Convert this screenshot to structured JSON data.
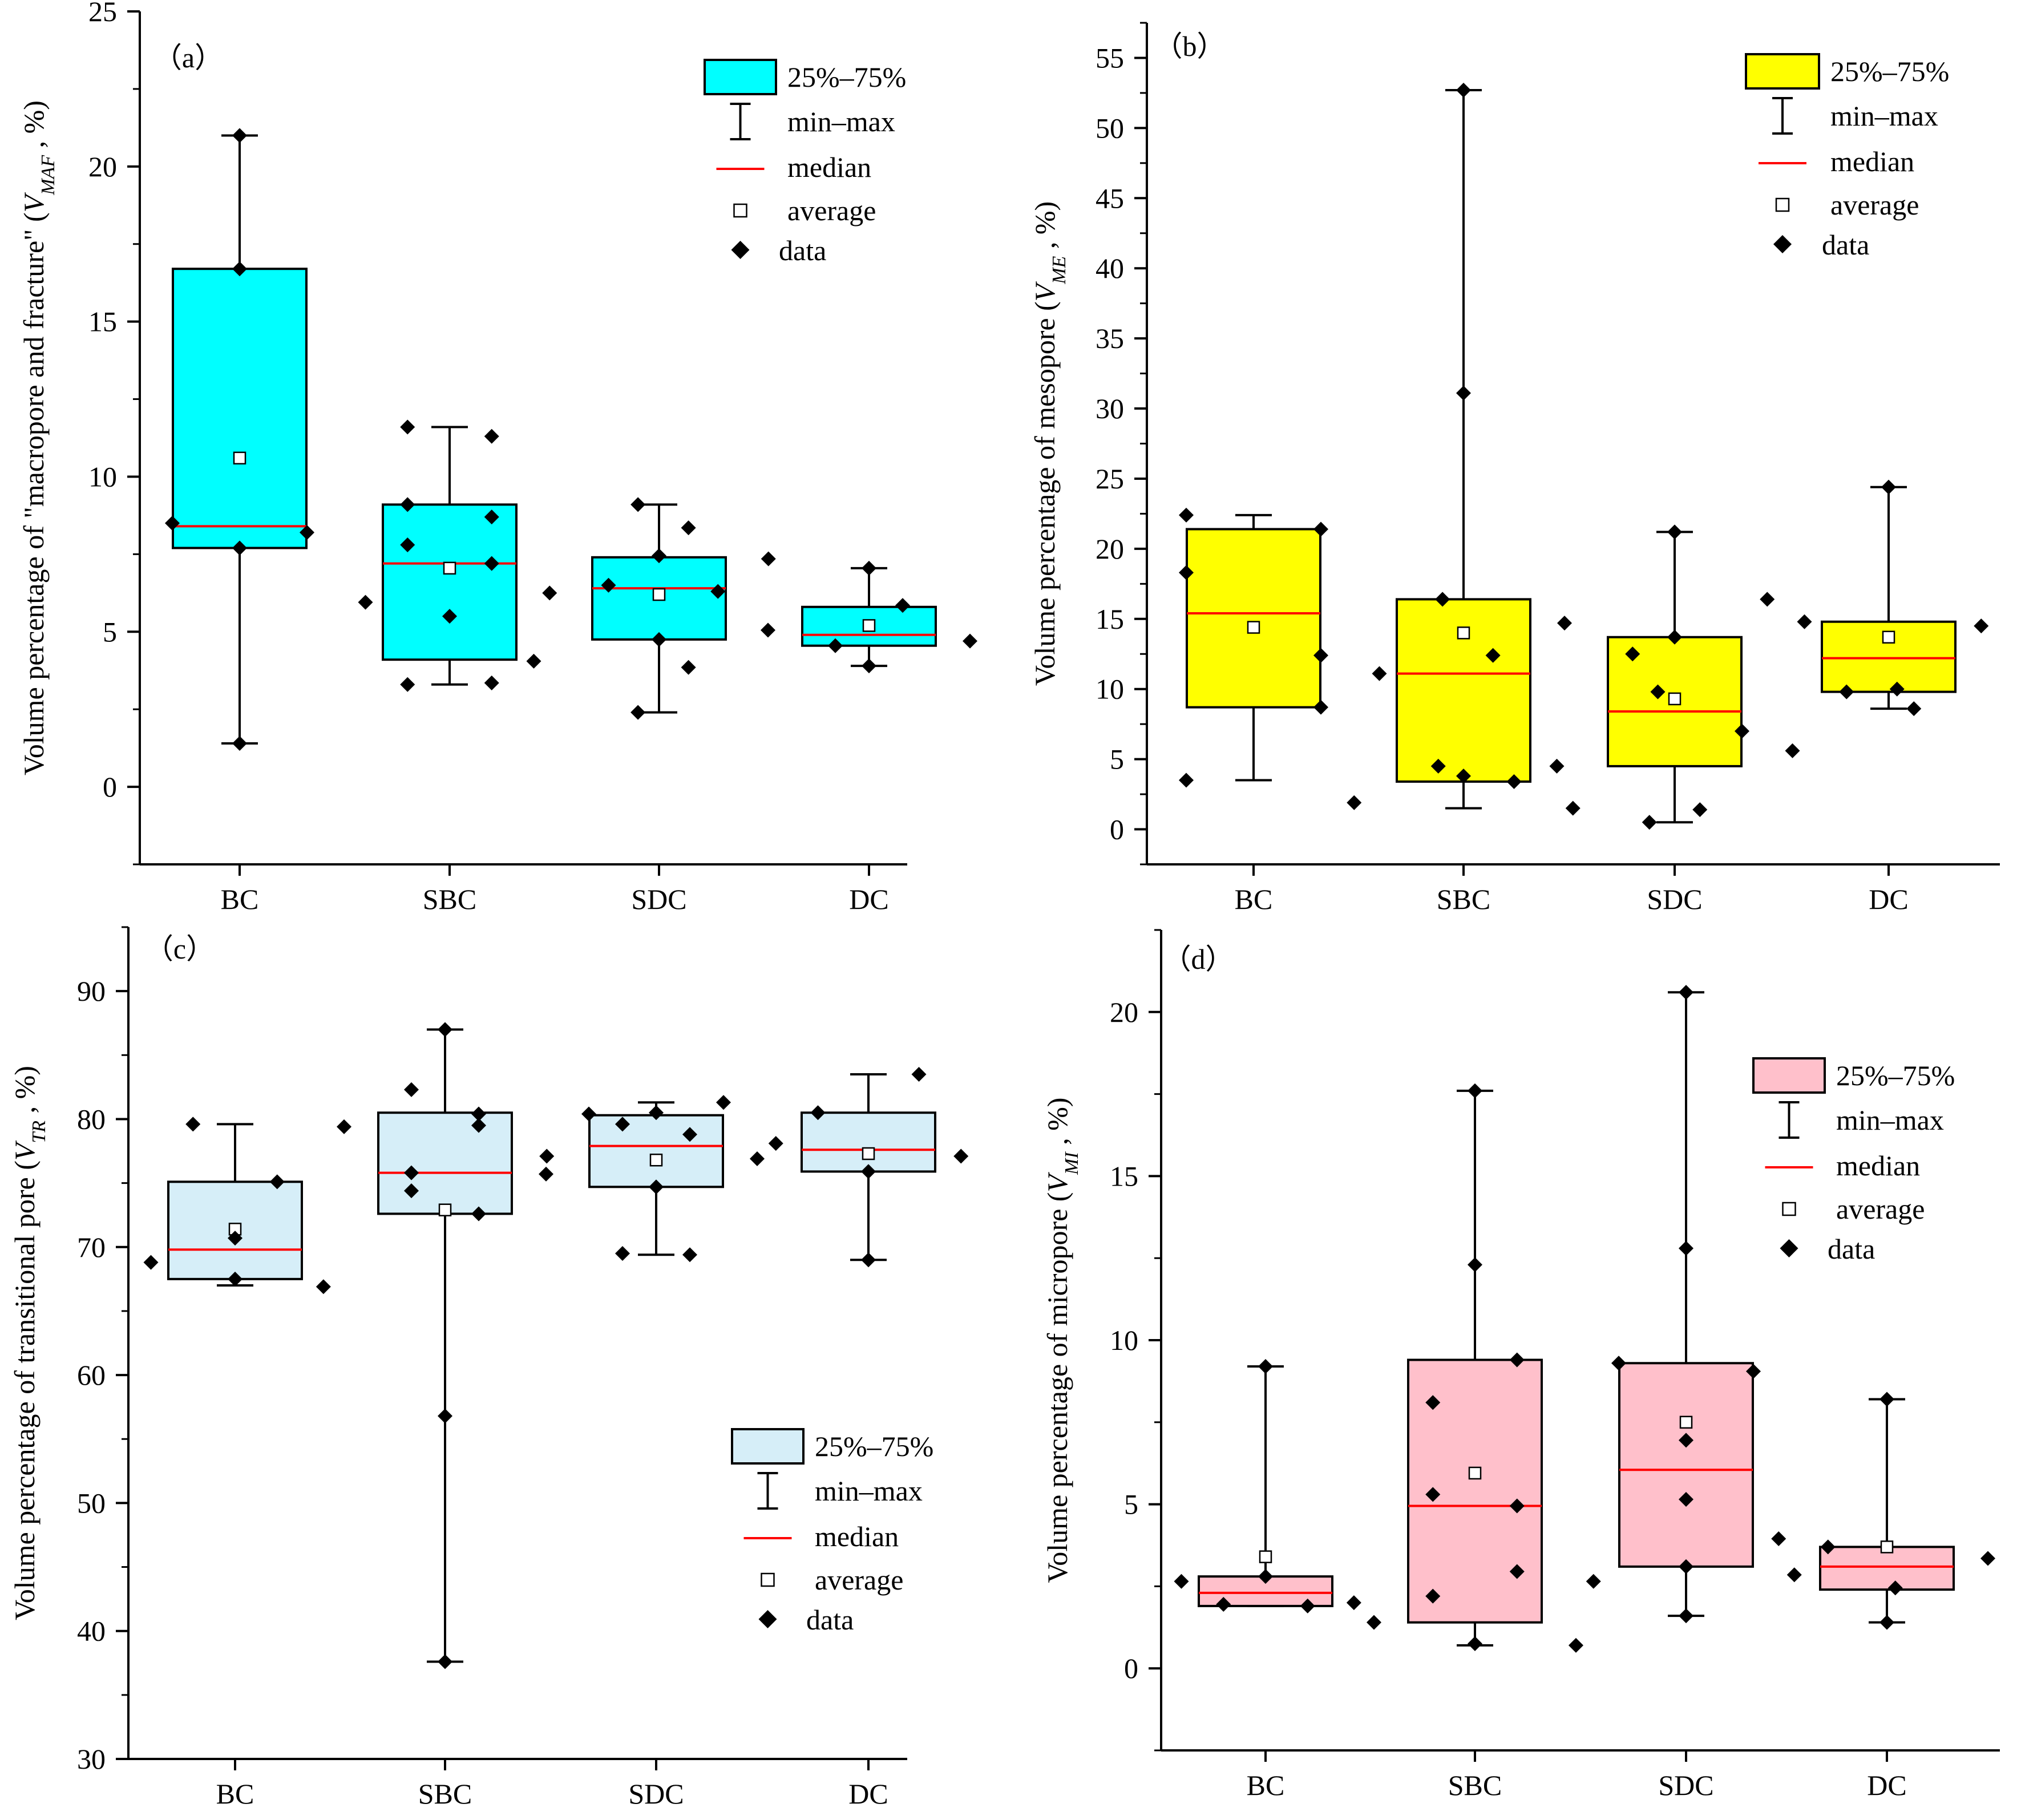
{
  "chart_data": [
    {
      "type": "box",
      "panel_label": "（a）",
      "ylabel": "Volume percentage of \"macropore and fracture\"",
      "ylabel_var": "V",
      "ylabel_sub": "MAF",
      "ylabel_suffix": ", %)",
      "ylim": [
        -2.5,
        25
      ],
      "yticks": [
        0,
        5,
        10,
        15,
        20,
        25
      ],
      "categories": [
        "BC",
        "SBC",
        "SDC",
        "DC"
      ],
      "box_color": "#00ffff",
      "legend_position": "top-right",
      "legend": [
        "25%–75%",
        "min–max",
        "median",
        "average",
        "data"
      ],
      "boxes": [
        {
          "category": "BC",
          "min": 1.4,
          "q1": 7.7,
          "median": 8.4,
          "q3": 16.7,
          "max": 21.0,
          "average": 10.6,
          "data": [
            [
              0,
              21.0
            ],
            [
              0,
              16.7
            ],
            [
              -0.16,
              8.5
            ],
            [
              0.16,
              8.2
            ],
            [
              0,
              7.7
            ],
            [
              0,
              1.4
            ]
          ]
        },
        {
          "category": "SBC",
          "min": 3.3,
          "q1": 4.1,
          "median": 7.2,
          "q3": 9.1,
          "max": 11.6,
          "average": 7.05,
          "data": [
            [
              -0.1,
              11.6
            ],
            [
              0.1,
              11.3
            ],
            [
              -0.1,
              9.1
            ],
            [
              0.1,
              8.7
            ],
            [
              -0.1,
              7.8
            ],
            [
              0.1,
              7.2
            ],
            [
              -0.2,
              5.95
            ],
            [
              0,
              5.5
            ],
            [
              0.2,
              4.05
            ],
            [
              -0.1,
              3.3
            ],
            [
              0.1,
              3.35
            ]
          ]
        },
        {
          "category": "SDC",
          "min": 2.4,
          "q1": 4.75,
          "median": 6.4,
          "q3": 7.4,
          "max": 9.1,
          "average": 6.2,
          "data": [
            [
              -0.05,
              9.1
            ],
            [
              0.07,
              8.35
            ],
            [
              0,
              7.45
            ],
            [
              0.26,
              7.35
            ],
            [
              -0.12,
              6.5
            ],
            [
              -0.26,
              6.25
            ],
            [
              0.14,
              6.3
            ],
            [
              0,
              4.75
            ],
            [
              0.07,
              3.85
            ],
            [
              -0.05,
              2.4
            ]
          ]
        },
        {
          "category": "DC",
          "min": 3.9,
          "q1": 4.55,
          "median": 4.9,
          "q3": 5.8,
          "max": 7.05,
          "average": 5.2,
          "data": [
            [
              0,
              7.05
            ],
            [
              0.08,
              5.85
            ],
            [
              -0.24,
              5.05
            ],
            [
              -0.08,
              4.55
            ],
            [
              0.24,
              4.7
            ],
            [
              0,
              3.9
            ]
          ]
        }
      ]
    },
    {
      "type": "box",
      "panel_label": "（b）",
      "ylabel": "Volume percentage of mesopore",
      "ylabel_var": "V",
      "ylabel_sub": "ME",
      "ylabel_suffix": ", %)",
      "ylim": [
        -2.5,
        57.5
      ],
      "yticks": [
        0,
        5,
        10,
        15,
        20,
        25,
        30,
        35,
        40,
        45,
        50,
        55
      ],
      "categories": [
        "BC",
        "SBC",
        "SDC",
        "DC"
      ],
      "box_color": "#ffff00",
      "legend_position": "top-right",
      "legend": [
        "25%–75%",
        "min–max",
        "median",
        "average",
        "data"
      ],
      "boxes": [
        {
          "category": "BC",
          "min": 3.5,
          "q1": 8.7,
          "median": 15.4,
          "q3": 21.4,
          "max": 22.4,
          "average": 14.4,
          "data": [
            [
              -0.16,
              22.4
            ],
            [
              0.16,
              21.4
            ],
            [
              -0.16,
              18.3
            ],
            [
              0.16,
              12.4
            ],
            [
              0.16,
              8.7
            ],
            [
              -0.16,
              3.5
            ]
          ]
        },
        {
          "category": "SBC",
          "min": 1.5,
          "q1": 3.4,
          "median": 11.1,
          "q3": 16.4,
          "max": 52.7,
          "average": 14.0,
          "data": [
            [
              0,
              52.7
            ],
            [
              0,
              31.1
            ],
            [
              -0.05,
              16.4
            ],
            [
              0.24,
              14.7
            ],
            [
              0.07,
              12.4
            ],
            [
              -0.2,
              11.1
            ],
            [
              -0.06,
              4.5
            ],
            [
              0,
              3.8
            ],
            [
              0.12,
              3.4
            ],
            [
              -0.26,
              1.9
            ],
            [
              0.26,
              1.5
            ]
          ]
        },
        {
          "category": "SDC",
          "min": 0.5,
          "q1": 4.5,
          "median": 8.4,
          "q3": 13.7,
          "max": 21.2,
          "average": 9.3,
          "data": [
            [
              0,
              21.2
            ],
            [
              0.22,
              16.4
            ],
            [
              0,
              13.7
            ],
            [
              -0.1,
              12.5
            ],
            [
              -0.04,
              9.8
            ],
            [
              0.16,
              7.0
            ],
            [
              0.28,
              5.6
            ],
            [
              -0.28,
              4.5
            ],
            [
              0.06,
              1.4
            ],
            [
              -0.06,
              0.5
            ]
          ]
        },
        {
          "category": "DC",
          "min": 8.6,
          "q1": 9.8,
          "median": 12.2,
          "q3": 14.8,
          "max": 24.4,
          "average": 13.7,
          "data": [
            [
              0,
              24.4
            ],
            [
              -0.2,
              14.8
            ],
            [
              0.22,
              14.5
            ],
            [
              -0.1,
              9.8
            ],
            [
              0.02,
              10.0
            ],
            [
              0.06,
              8.6
            ]
          ]
        }
      ]
    },
    {
      "type": "box",
      "panel_label": "（c）",
      "ylabel": "Volume percentage of transitional pore",
      "ylabel_var": "V",
      "ylabel_sub": "TR",
      "ylabel_suffix": ", %)",
      "ylim": [
        30,
        95
      ],
      "yticks": [
        30,
        40,
        50,
        60,
        70,
        80,
        90
      ],
      "categories": [
        "BC",
        "SBC",
        "SDC",
        "DC"
      ],
      "box_color": "#d6eef8",
      "legend_position": "bottom-right",
      "legend": [
        "25%–75%",
        "min–max",
        "median",
        "average",
        "data"
      ],
      "boxes": [
        {
          "category": "BC",
          "min": 67.0,
          "q1": 67.5,
          "median": 69.8,
          "q3": 75.1,
          "max": 79.6,
          "average": 71.4,
          "data": [
            [
              -0.1,
              79.6
            ],
            [
              0.1,
              75.1
            ],
            [
              0,
              70.7
            ],
            [
              -0.2,
              68.8
            ],
            [
              0,
              67.5
            ],
            [
              0.21,
              66.9
            ]
          ]
        },
        {
          "category": "SBC",
          "min": 37.6,
          "q1": 72.6,
          "median": 75.8,
          "q3": 80.5,
          "max": 87.0,
          "average": 72.9,
          "data": [
            [
              0,
              87.0
            ],
            [
              -0.08,
              82.3
            ],
            [
              0.08,
              80.4
            ],
            [
              -0.24,
              79.4
            ],
            [
              0.08,
              79.5
            ],
            [
              -0.08,
              75.8
            ],
            [
              0.24,
              75.7
            ],
            [
              -0.08,
              74.4
            ],
            [
              0.08,
              72.6
            ],
            [
              0,
              56.8
            ],
            [
              0,
              37.6
            ]
          ]
        },
        {
          "category": "SDC",
          "min": 69.4,
          "q1": 74.7,
          "median": 77.9,
          "q3": 80.3,
          "max": 81.3,
          "average": 76.8,
          "data": [
            [
              0.16,
              81.3
            ],
            [
              -0.16,
              80.4
            ],
            [
              0,
              80.5
            ],
            [
              -0.08,
              79.6
            ],
            [
              0.08,
              78.8
            ],
            [
              -0.26,
              77.1
            ],
            [
              0.24,
              76.9
            ],
            [
              0,
              74.7
            ],
            [
              -0.08,
              69.5
            ],
            [
              0.08,
              69.4
            ]
          ]
        },
        {
          "category": "DC",
          "min": 69.0,
          "q1": 75.9,
          "median": 77.6,
          "q3": 80.5,
          "max": 83.5,
          "average": 77.3,
          "data": [
            [
              0.12,
              83.5
            ],
            [
              -0.12,
              80.5
            ],
            [
              -0.22,
              78.1
            ],
            [
              0.22,
              77.1
            ],
            [
              0,
              75.9
            ],
            [
              0,
              69.0
            ]
          ]
        }
      ]
    },
    {
      "type": "box",
      "panel_label": "（d）",
      "ylabel": "Volume percentage of micropore",
      "ylabel_var": "V",
      "ylabel_sub": "MI",
      "ylabel_suffix": ", %)",
      "ylim": [
        -2.5,
        22.5
      ],
      "yticks": [
        0,
        5,
        10,
        15,
        20
      ],
      "categories": [
        "BC",
        "SBC",
        "SDC",
        "DC"
      ],
      "box_color": "#ffc0cb",
      "legend_position": "top-right",
      "legend": [
        "25%–75%",
        "min–max",
        "median",
        "average",
        "data"
      ],
      "boxes": [
        {
          "category": "BC",
          "min": 1.9,
          "q1": 1.9,
          "median": 2.3,
          "q3": 2.8,
          "max": 9.2,
          "average": 3.4,
          "data": [
            [
              0,
              9.2
            ],
            [
              0,
              2.8
            ],
            [
              -0.2,
              2.65
            ],
            [
              -0.1,
              1.95
            ],
            [
              0.1,
              1.9
            ],
            [
              0.21,
              2.0
            ]
          ]
        },
        {
          "category": "SBC",
          "min": 0.7,
          "q1": 1.4,
          "median": 4.95,
          "q3": 9.4,
          "max": 17.6,
          "average": 5.95,
          "data": [
            [
              0,
              17.6
            ],
            [
              0,
              12.3
            ],
            [
              0.1,
              9.4
            ],
            [
              -0.1,
              8.1
            ],
            [
              -0.1,
              5.3
            ],
            [
              0.1,
              4.95
            ],
            [
              0.1,
              2.95
            ],
            [
              -0.1,
              2.2
            ],
            [
              -0.24,
              1.4
            ],
            [
              0,
              0.75
            ],
            [
              0.24,
              0.7
            ]
          ]
        },
        {
          "category": "SDC",
          "min": 1.6,
          "q1": 3.1,
          "median": 6.05,
          "q3": 9.3,
          "max": 20.6,
          "average": 7.5,
          "data": [
            [
              0,
              20.6
            ],
            [
              0,
              12.8
            ],
            [
              -0.16,
              9.3
            ],
            [
              0.16,
              9.05
            ],
            [
              0,
              6.95
            ],
            [
              0,
              5.15
            ],
            [
              0.22,
              3.95
            ],
            [
              0,
              3.1
            ],
            [
              -0.22,
              2.65
            ],
            [
              0,
              1.6
            ]
          ]
        },
        {
          "category": "DC",
          "min": 1.4,
          "q1": 2.4,
          "median": 3.1,
          "q3": 3.7,
          "max": 8.2,
          "average": 3.7,
          "data": [
            [
              0,
              8.2
            ],
            [
              -0.14,
              3.7
            ],
            [
              0.24,
              3.35
            ],
            [
              -0.22,
              2.85
            ],
            [
              0.02,
              2.45
            ],
            [
              0,
              1.4
            ]
          ]
        }
      ]
    }
  ]
}
